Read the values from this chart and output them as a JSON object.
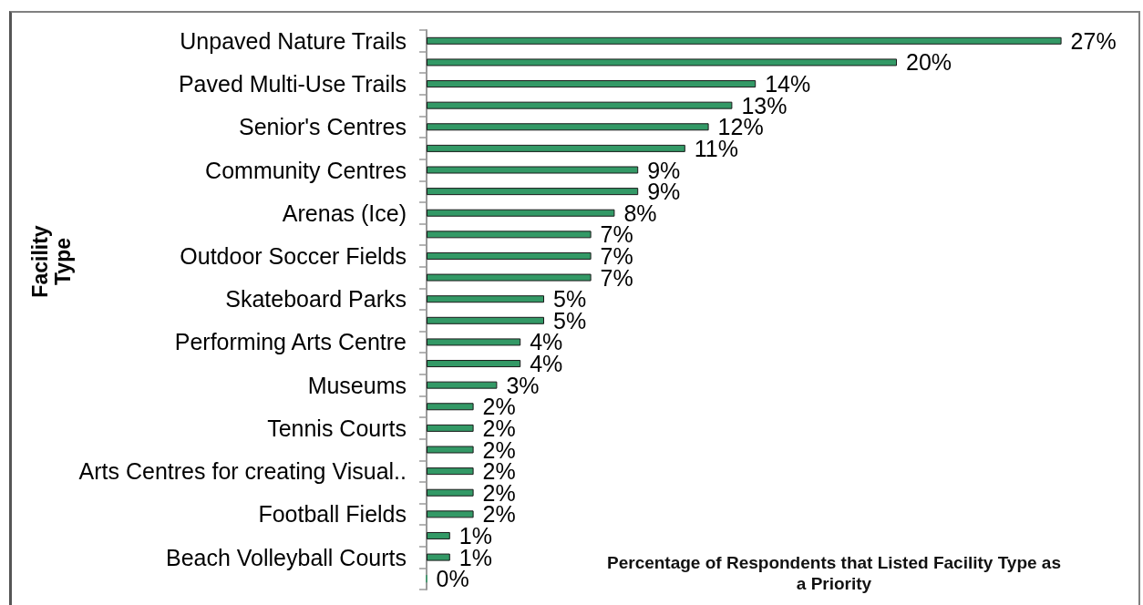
{
  "chart_data": {
    "type": "bar",
    "orientation": "horizontal",
    "ylabel": "Facility Type",
    "xlabel": "Percentage of Respondents that Listed Facility Type as a Priority",
    "categories": [
      "Unpaved Nature Trails",
      null,
      "Paved Multi-Use Trails",
      null,
      "Senior's Centres",
      null,
      "Community Centres",
      null,
      "Arenas (Ice)",
      null,
      "Outdoor Soccer Fields",
      null,
      "Skateboard Parks",
      null,
      "Performing Arts Centre",
      null,
      "Museums",
      null,
      "Tennis Courts",
      null,
      "Arts Centres for creating Visual..",
      null,
      "Football Fields",
      null,
      "Beach Volleyball Courts",
      null
    ],
    "values": [
      27,
      20,
      14,
      13,
      12,
      11,
      9,
      9,
      8,
      7,
      7,
      7,
      5,
      5,
      4,
      4,
      3,
      2,
      2,
      2,
      2,
      2,
      2,
      1,
      1,
      0
    ],
    "value_labels": [
      "27%",
      "20%",
      "14%",
      "13%",
      "12%",
      "11%",
      "9%",
      "9%",
      "8%",
      "7%",
      "7%",
      "7%",
      "5%",
      "5%",
      "4%",
      "4%",
      "3%",
      "2%",
      "2%",
      "2%",
      "2%",
      "2%",
      "2%",
      "1%",
      "1%",
      "0%"
    ],
    "color": "#339966",
    "tick_labels": "y"
  }
}
